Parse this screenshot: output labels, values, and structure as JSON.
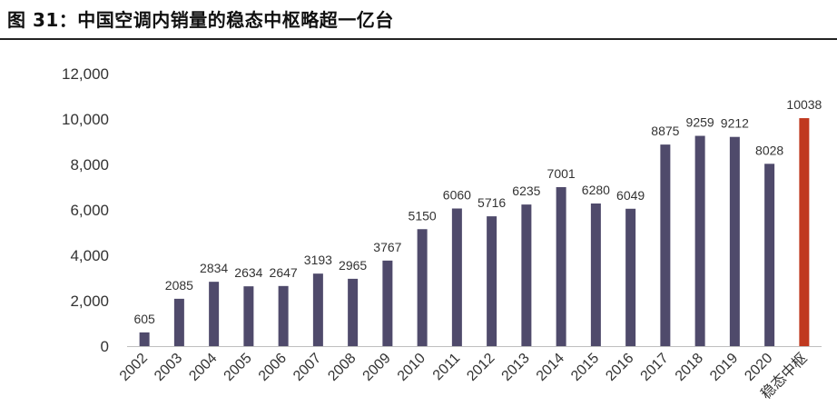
{
  "figure": {
    "title": "图 31：中国空调内销量的稳态中枢略超一亿台"
  },
  "chart_data": {
    "type": "bar",
    "categories": [
      "2002",
      "2003",
      "2004",
      "2005",
      "2006",
      "2007",
      "2008",
      "2009",
      "2010",
      "2011",
      "2012",
      "2013",
      "2014",
      "2015",
      "2016",
      "2017",
      "2018",
      "2019",
      "2020",
      "稳态中枢"
    ],
    "values": [
      605,
      2085,
      2834,
      2634,
      2647,
      3193,
      2965,
      3767,
      5150,
      6060,
      5716,
      6235,
      7001,
      6280,
      6049,
      8875,
      9259,
      9212,
      8028,
      10038
    ],
    "data_labels": [
      "605",
      "2085",
      "2834",
      "2634",
      "2647",
      "3193",
      "2965",
      "3767",
      "5150",
      "6060",
      "5716",
      "6235",
      "7001",
      "6280",
      "6049",
      "8875",
      "9259",
      "9212",
      "8028",
      "10038"
    ],
    "yticks": [
      0,
      2000,
      4000,
      6000,
      8000,
      10000,
      12000
    ],
    "ytick_labels": [
      "0",
      "2,000",
      "4,000",
      "6,000",
      "8,000",
      "10,000",
      "12,000"
    ],
    "ylim": [
      0,
      12000
    ],
    "grid": false,
    "legend": "none",
    "colors": {
      "bar": "#4f4a6b",
      "highlight": "#c0391f",
      "axis": "#bfbfbf",
      "text": "#333333"
    },
    "highlight_index": 19
  }
}
